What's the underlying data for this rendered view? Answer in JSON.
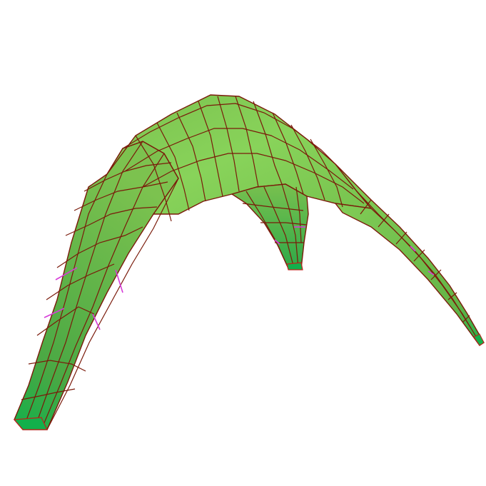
{
  "scene": {
    "description_visible_text": "",
    "colors": {
      "background": "#ffffff",
      "surface_light": "#86d45a",
      "surface_mid": "#6fb747",
      "surface_dark": "#3aa54a",
      "foot_green": "#10b04a",
      "mesh_line": "#7a1a0a",
      "edge_highlight": "#d63bd8"
    }
  }
}
